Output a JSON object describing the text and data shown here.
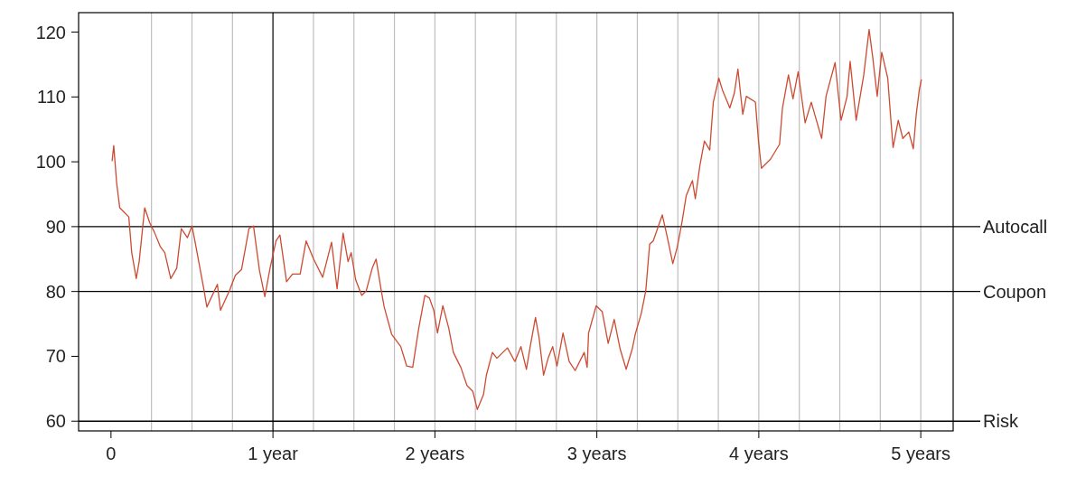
{
  "chart_data": {
    "type": "line",
    "x": [
      0.007,
      0.017,
      0.035,
      0.054,
      0.11,
      0.128,
      0.156,
      0.174,
      0.208,
      0.239,
      0.267,
      0.305,
      0.332,
      0.369,
      0.406,
      0.434,
      0.472,
      0.5,
      0.518,
      0.573,
      0.592,
      0.657,
      0.676,
      0.731,
      0.768,
      0.806,
      0.852,
      0.88,
      0.917,
      0.95,
      0.982,
      1.019,
      1.043,
      1.084,
      1.121,
      1.168,
      1.205,
      1.251,
      1.307,
      1.362,
      1.396,
      1.433,
      1.464,
      1.483,
      1.511,
      1.548,
      1.576,
      1.613,
      1.637,
      1.669,
      1.687,
      1.733,
      1.789,
      1.826,
      1.863,
      1.9,
      1.938,
      1.966,
      1.993,
      2.016,
      2.049,
      2.086,
      2.114,
      2.16,
      2.198,
      2.234,
      2.262,
      2.3,
      2.318,
      2.355,
      2.383,
      2.448,
      2.494,
      2.531,
      2.565,
      2.587,
      2.621,
      2.643,
      2.671,
      2.699,
      2.727,
      2.754,
      2.791,
      2.829,
      2.866,
      2.922,
      2.94,
      2.949,
      2.996,
      3.033,
      3.07,
      3.107,
      3.144,
      3.181,
      3.218,
      3.237,
      3.274,
      3.302,
      3.326,
      3.348,
      3.404,
      3.432,
      3.469,
      3.497,
      3.525,
      3.552,
      3.59,
      3.608,
      3.636,
      3.664,
      3.697,
      3.719,
      3.753,
      3.775,
      3.821,
      3.849,
      3.871,
      3.901,
      3.923,
      3.979,
      3.998,
      4.016,
      4.072,
      4.128,
      4.146,
      4.183,
      4.211,
      4.243,
      4.286,
      4.324,
      4.35,
      4.388,
      4.415,
      4.471,
      4.49,
      4.508,
      4.545,
      4.564,
      4.601,
      4.648,
      4.681,
      4.703,
      4.731,
      4.759,
      4.796,
      4.814,
      4.829,
      4.861,
      4.889,
      4.926,
      4.954,
      4.972,
      4.991,
      5.004
    ],
    "series": [
      {
        "color": "#cc4b32",
        "values": [
          100.1,
          102.5,
          96.7,
          92.9,
          91.5,
          86.0,
          82.0,
          84.6,
          92.9,
          90.6,
          89.2,
          86.9,
          86.0,
          82.0,
          83.6,
          89.7,
          88.3,
          90.1,
          87.8,
          80.4,
          77.6,
          81.1,
          77.1,
          80.1,
          82.5,
          83.4,
          89.7,
          90.1,
          83.2,
          79.2,
          83.6,
          87.8,
          88.7,
          81.5,
          82.7,
          82.7,
          87.8,
          85.0,
          82.2,
          87.6,
          80.4,
          89.0,
          84.6,
          86.0,
          81.8,
          79.4,
          80.1,
          83.6,
          85.0,
          80.1,
          77.6,
          73.4,
          71.5,
          68.5,
          68.3,
          74.3,
          79.4,
          79.0,
          77.1,
          73.6,
          77.8,
          74.3,
          70.6,
          68.3,
          65.5,
          64.6,
          61.8,
          64.1,
          67.1,
          70.6,
          69.7,
          71.3,
          69.2,
          71.5,
          68.0,
          71.3,
          76.0,
          72.9,
          67.1,
          69.7,
          71.5,
          68.5,
          73.6,
          69.2,
          67.8,
          70.6,
          68.3,
          73.6,
          77.8,
          76.9,
          72.0,
          75.7,
          71.1,
          68.0,
          71.1,
          73.4,
          76.6,
          80.1,
          87.3,
          87.8,
          91.8,
          88.7,
          84.3,
          86.9,
          90.6,
          94.8,
          97.1,
          94.3,
          99.4,
          103.2,
          101.8,
          109.2,
          112.9,
          111.1,
          108.3,
          110.6,
          114.3,
          107.3,
          110.1,
          109.2,
          103.2,
          99.0,
          100.4,
          102.7,
          108.3,
          113.4,
          109.7,
          113.9,
          106.0,
          109.2,
          106.9,
          103.6,
          110.1,
          115.3,
          110.6,
          106.4,
          110.1,
          115.5,
          106.4,
          113.4,
          120.4,
          116.2,
          110.1,
          116.9,
          112.9,
          106.9,
          102.2,
          106.4,
          103.6,
          104.6,
          102.0,
          107.3,
          111.1,
          112.7
        ]
      }
    ],
    "xlim": [
      -0.2,
      5.2
    ],
    "ylim": [
      58.5,
      123
    ],
    "xticks": [
      0,
      {
        "value": 1,
        "label": "1 year"
      },
      {
        "value": 2,
        "label": "2 years"
      },
      {
        "value": 3,
        "label": "3 years"
      },
      {
        "value": 4,
        "label": "4 years"
      },
      {
        "value": 5,
        "label": "5 years"
      }
    ],
    "yticks": [
      60,
      70,
      80,
      90,
      100,
      110,
      120
    ],
    "ref_lines": [
      {
        "axis": "x",
        "value": 0.25,
        "color": "#bebebe"
      },
      {
        "axis": "x",
        "value": 0.5,
        "color": "#bebebe"
      },
      {
        "axis": "x",
        "value": 0.75,
        "color": "#bebebe"
      },
      {
        "axis": "x",
        "value": 1,
        "color": "#000000"
      },
      {
        "axis": "x",
        "value": 1.25,
        "color": "#bebebe"
      },
      {
        "axis": "x",
        "value": 1.5,
        "color": "#bebebe"
      },
      {
        "axis": "x",
        "value": 1.75,
        "color": "#bebebe"
      },
      {
        "axis": "x",
        "value": 2,
        "color": "#bebebe"
      },
      {
        "axis": "x",
        "value": 2.25,
        "color": "#bebebe"
      },
      {
        "axis": "x",
        "value": 2.5,
        "color": "#bebebe"
      },
      {
        "axis": "x",
        "value": 2.75,
        "color": "#bebebe"
      },
      {
        "axis": "x",
        "value": 3,
        "color": "#bebebe"
      },
      {
        "axis": "x",
        "value": 3.25,
        "color": "#bebebe"
      },
      {
        "axis": "x",
        "value": 3.5,
        "color": "#bebebe"
      },
      {
        "axis": "x",
        "value": 3.75,
        "color": "#bebebe"
      },
      {
        "axis": "x",
        "value": 4,
        "color": "#bebebe"
      },
      {
        "axis": "x",
        "value": 4.25,
        "color": "#bebebe"
      },
      {
        "axis": "x",
        "value": 4.5,
        "color": "#bebebe"
      },
      {
        "axis": "x",
        "value": 4.75,
        "color": "#bebebe"
      },
      {
        "axis": "x",
        "value": 5,
        "color": "#bebebe"
      },
      {
        "axis": "y",
        "value": 90,
        "label": "Autocall",
        "color": "#000000"
      },
      {
        "axis": "y",
        "value": 80,
        "label": "Coupon",
        "color": "#000000"
      },
      {
        "axis": "y",
        "value": 60,
        "label": "Risk",
        "color": "#000000"
      }
    ]
  }
}
